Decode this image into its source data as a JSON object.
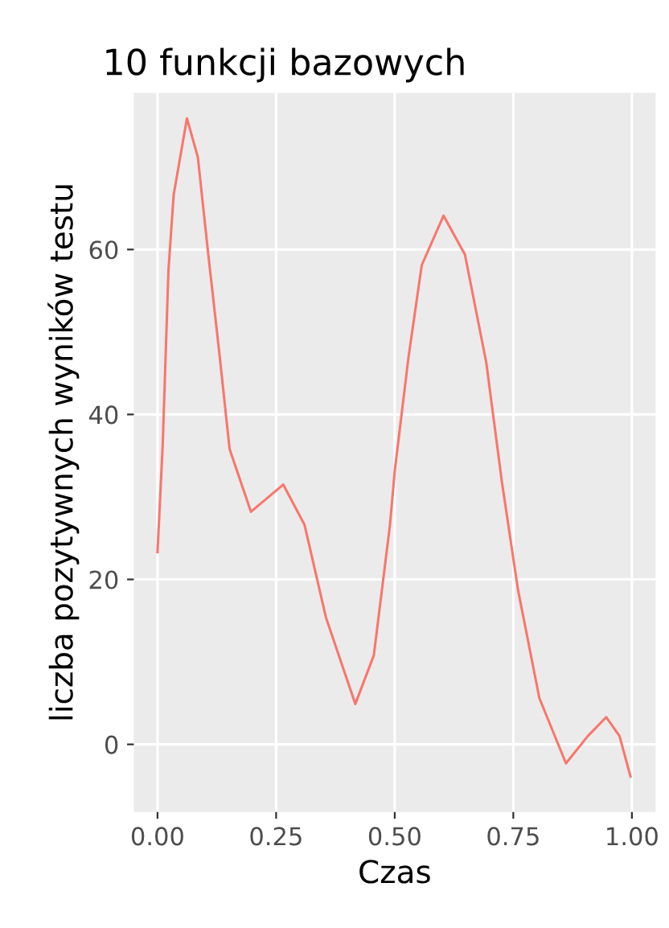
{
  "chart_data": {
    "type": "line",
    "title": "10 funkcji bazowych",
    "xlabel": "Czas",
    "ylabel": "liczba pozytywnych wyników testu",
    "x": [
      0,
      0.011,
      0.023,
      0.034,
      0.062,
      0.085,
      0.107,
      0.13,
      0.152,
      0.197,
      0.265,
      0.31,
      0.355,
      0.417,
      0.456,
      0.49,
      0.5,
      0.529,
      0.557,
      0.603,
      0.648,
      0.693,
      0.726,
      0.76,
      0.805,
      0.861,
      0.907,
      0.946,
      0.974,
      0.997
    ],
    "series": [
      {
        "color": "#f8766d",
        "values": [
          23.3,
          36.4,
          57.4,
          66.6,
          75.9,
          71.2,
          59.4,
          47.6,
          35.8,
          28.2,
          31.5,
          26.6,
          15.4,
          4.9,
          10.8,
          26.6,
          33.1,
          46.9,
          58.1,
          64.1,
          59.4,
          46.3,
          31.8,
          18.7,
          5.6,
          -2.3,
          1.0,
          3.3,
          1.0,
          -3.9
        ]
      }
    ],
    "xlim": [
      -0.05,
      1.05
    ],
    "ylim": [
      -8.2,
      79
    ],
    "xticks": [
      {
        "value": 0,
        "label": "0.00"
      },
      {
        "value": 0.25,
        "label": "0.25"
      },
      {
        "value": 0.5,
        "label": "0.50"
      },
      {
        "value": 0.75,
        "label": "0.75"
      },
      {
        "value": 1,
        "label": "1.00"
      }
    ],
    "yticks": [
      0,
      20,
      40,
      60
    ],
    "grid": true,
    "marker": "none",
    "line_style": "solid"
  }
}
